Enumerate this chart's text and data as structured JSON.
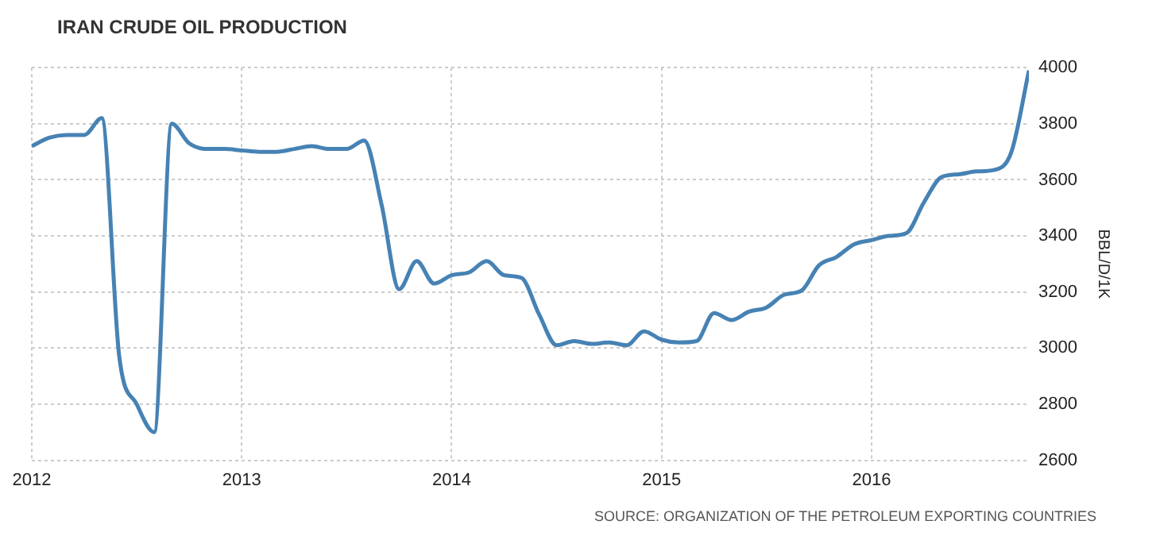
{
  "chart_data": {
    "type": "line",
    "title": "IRAN CRUDE OIL PRODUCTION",
    "ylabel": "BBL/D/1K",
    "annotations": [
      "SOURCE: ORGANIZATION OF THE PETROLEUM EXPORTING COUNTRIES"
    ],
    "x": [
      "2012-01",
      "2012-02",
      "2012-03",
      "2012-04",
      "2012-05",
      "2012-06",
      "2012-07",
      "2012-08",
      "2012-09",
      "2012-10",
      "2012-11",
      "2012-12",
      "2013-01",
      "2013-02",
      "2013-03",
      "2013-04",
      "2013-05",
      "2013-06",
      "2013-07",
      "2013-08",
      "2013-09",
      "2013-10",
      "2013-11",
      "2013-12",
      "2014-01",
      "2014-02",
      "2014-03",
      "2014-04",
      "2014-05",
      "2014-06",
      "2014-07",
      "2014-08",
      "2014-09",
      "2014-10",
      "2014-11",
      "2014-12",
      "2015-01",
      "2015-02",
      "2015-03",
      "2015-04",
      "2015-05",
      "2015-06",
      "2015-07",
      "2015-08",
      "2015-09",
      "2015-10",
      "2015-11",
      "2015-12",
      "2016-01",
      "2016-02",
      "2016-03",
      "2016-04",
      "2016-05",
      "2016-06",
      "2016-07",
      "2016-08",
      "2016-09",
      "2016-10"
    ],
    "series": [
      {
        "color": "#4682b4",
        "values": [
          3720,
          3750,
          3760,
          3760,
          3820,
          2970,
          2800,
          2700,
          3800,
          3730,
          3710,
          3710,
          3705,
          3700,
          3700,
          3710,
          3720,
          3710,
          3710,
          3740,
          3510,
          3210,
          3310,
          3230,
          3260,
          3270,
          3310,
          3260,
          3250,
          3120,
          3010,
          3025,
          3015,
          3020,
          3010,
          3060,
          3030,
          3020,
          3025,
          3125,
          3100,
          3130,
          3145,
          3190,
          3205,
          3295,
          3325,
          3370,
          3385,
          3400,
          3410,
          3520,
          3610,
          3620,
          3630,
          3635,
          3700,
          3990
        ]
      }
    ],
    "xlim": [
      "2012-01",
      "2016-10"
    ],
    "xticks": [
      "2012",
      "2013",
      "2014",
      "2015",
      "2016"
    ],
    "ylim": [
      2600,
      4000
    ],
    "yticks": [
      2600,
      2800,
      3000,
      3200,
      3400,
      3600,
      3800,
      4000
    ],
    "grid": true,
    "legend": false,
    "marker": "none",
    "line_style": "solid"
  }
}
